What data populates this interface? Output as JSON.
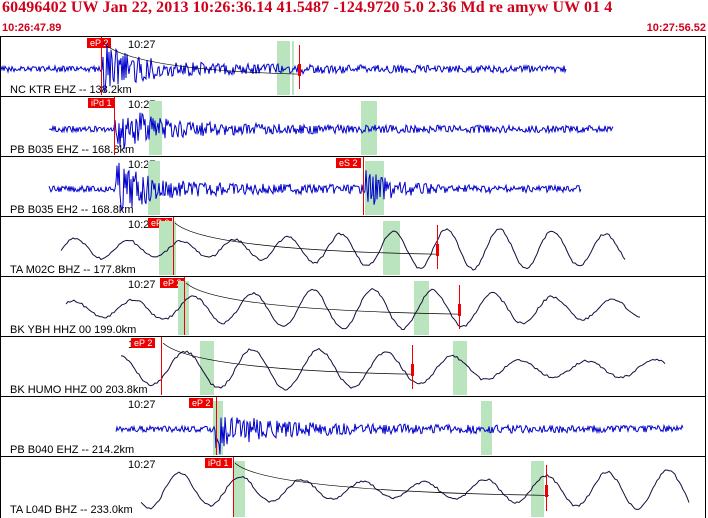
{
  "header": {
    "title": "60496402 UW Jan 22, 2013 10:26:36.14   41.5487 -124.9720   5.0 2.36 Md re amyw UW 01    4",
    "time_start": "10:26:47.89",
    "time_end": "10:27:56.52"
  },
  "colors": {
    "header_red": "#d0021b",
    "trace_blue": "#0000cc",
    "trace_dark": "#1a0a3a",
    "pick_red": "#ee0000",
    "window_green": "#b9e4bd"
  },
  "tick_label": "10:27",
  "traces": [
    {
      "label": "NC KTR EHZ -- 138.2km",
      "pick": "eP 2",
      "color": "blue",
      "style": "noise"
    },
    {
      "label": "PB B035 EHZ -- 168.8km",
      "pick": "iPd 1",
      "color": "blue",
      "style": "noise"
    },
    {
      "label": "PB B035 EH2 -- 168.8km",
      "pick": "eS 2",
      "color": "blue",
      "style": "noise"
    },
    {
      "label": "TA M02C BHZ -- 177.8km",
      "pick": "eP 2",
      "color": "dark",
      "style": "wave"
    },
    {
      "label": "BK YBH HHZ 00 199.0km",
      "pick": "eP 2",
      "color": "dark",
      "style": "wave"
    },
    {
      "label": "BK HUMO HHZ 00 203.8km",
      "pick": "eP 2",
      "color": "dark",
      "style": "wave"
    },
    {
      "label": "PB B040 EHZ -- 214.2km",
      "pick": "eP 2",
      "color": "blue",
      "style": "noise"
    },
    {
      "label": "TA L04D BHZ -- 233.0km",
      "pick": "iPd 1",
      "color": "dark",
      "style": "wave"
    }
  ]
}
